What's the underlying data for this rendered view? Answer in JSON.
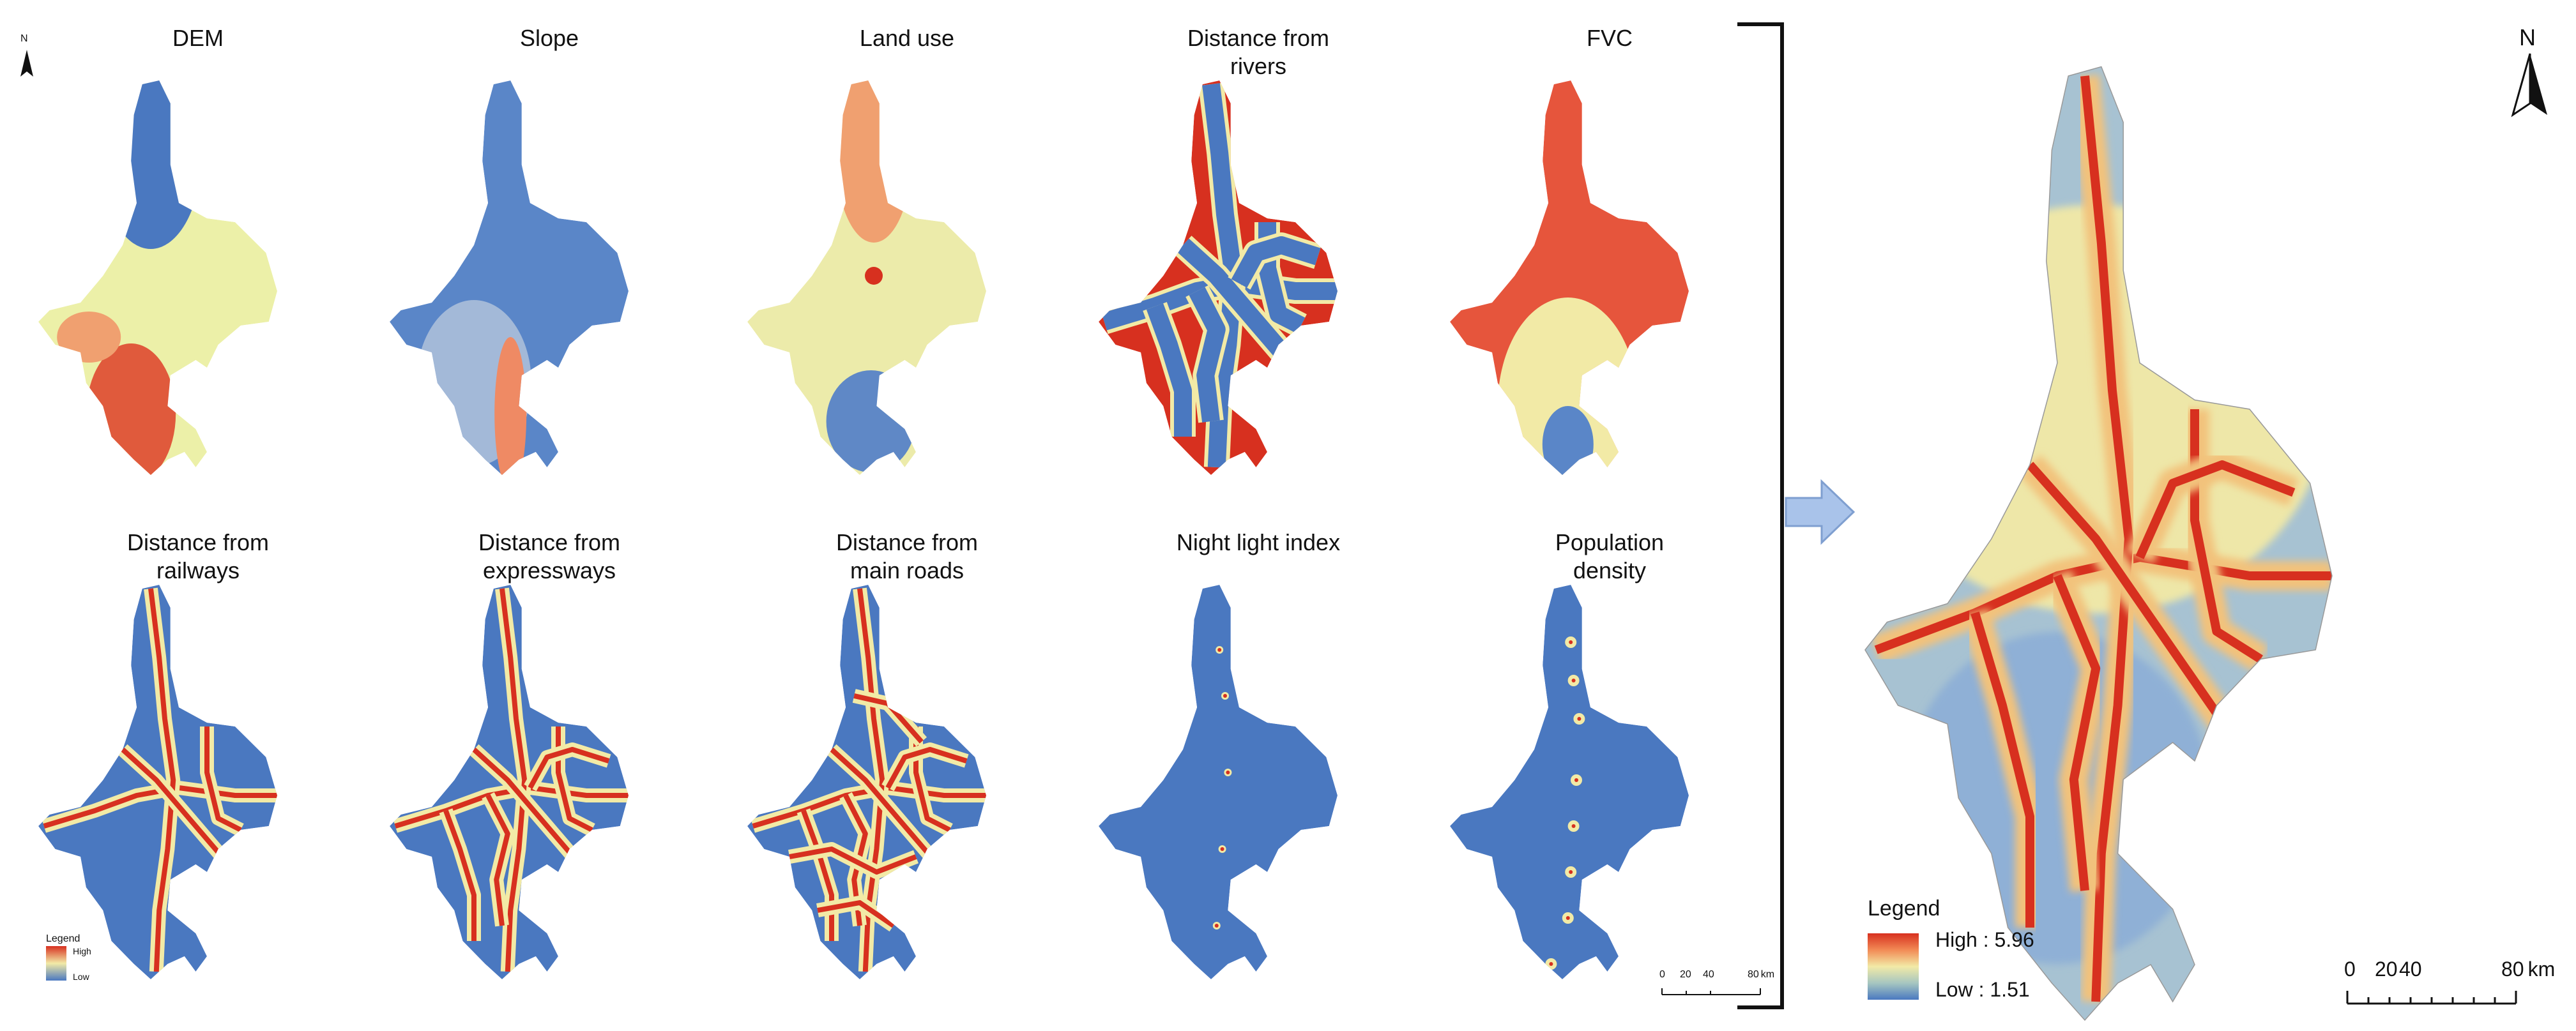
{
  "panels": [
    {
      "id": "dem",
      "title_lines": [
        "DEM"
      ],
      "palette": "dem"
    },
    {
      "id": "slope",
      "title_lines": [
        "Slope"
      ],
      "palette": "slope"
    },
    {
      "id": "landuse",
      "title_lines": [
        "Land use"
      ],
      "palette": "landuse"
    },
    {
      "id": "rivers",
      "title_lines": [
        "Distance from",
        "rivers"
      ],
      "palette": "rivers"
    },
    {
      "id": "fvc",
      "title_lines": [
        "FVC"
      ],
      "palette": "fvc"
    },
    {
      "id": "railways",
      "title_lines": [
        "Distance from",
        "railways"
      ],
      "palette": "network"
    },
    {
      "id": "expressways",
      "title_lines": [
        "Distance from",
        "expressways"
      ],
      "palette": "network"
    },
    {
      "id": "mainroads",
      "title_lines": [
        "Distance from",
        "main roads"
      ],
      "palette": "network"
    },
    {
      "id": "nightlight",
      "title_lines": [
        "Night light index"
      ],
      "palette": "lights"
    },
    {
      "id": "population",
      "title_lines": [
        "Population",
        "density"
      ],
      "palette": "lights"
    }
  ],
  "north_small": "N",
  "small_legend": {
    "title": "Legend",
    "high": "High",
    "low": "Low"
  },
  "small_scale": {
    "ticks": [
      "0",
      "20",
      "40",
      "80"
    ],
    "unit": "km"
  },
  "result_map": {
    "north": "N",
    "legend_title": "Legend",
    "high_label": "High : 5.96",
    "low_label": "Low : 1.51",
    "high_value": 5.96,
    "low_value": 1.51,
    "scale_ticks": [
      "0",
      "20",
      "40",
      "80"
    ],
    "scale_unit": "km"
  },
  "colors": {
    "high": "#d7301f",
    "mid": "#f2eaa6",
    "low": "#4a78c0",
    "arrow": "#a9c3ea"
  }
}
